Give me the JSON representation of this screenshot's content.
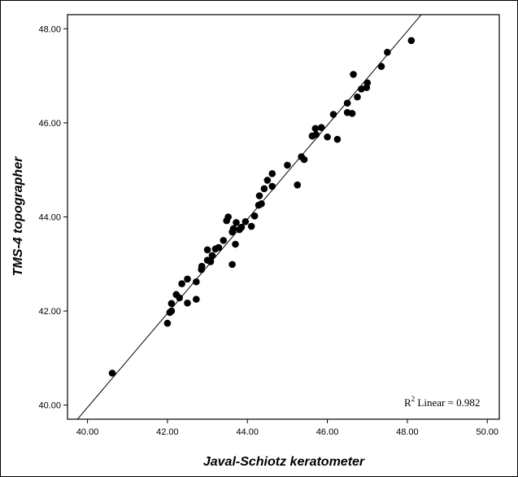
{
  "chart_data": {
    "type": "scatter",
    "xlabel": "Javal-Schiotz keratometer",
    "ylabel": "TMS-4 topographer",
    "xlim": [
      39.5,
      50.3
    ],
    "ylim": [
      39.7,
      48.3
    ],
    "xticks": [
      "40.00",
      "42.00",
      "44.00",
      "46.00",
      "48.00",
      "50.00"
    ],
    "yticks": [
      "40.00",
      "42.00",
      "44.00",
      "46.00",
      "48.00"
    ],
    "xtick_values": [
      40,
      42,
      44,
      46,
      48,
      50
    ],
    "ytick_values": [
      40,
      42,
      44,
      46,
      48
    ],
    "fit_line": {
      "slope": 1.0,
      "intercept": -0.05
    },
    "annotation": {
      "r2_base": "R",
      "r2_sup": "2",
      "r2_text": " Linear = 0.982"
    },
    "points": [
      [
        40.62,
        40.68
      ],
      [
        42.0,
        41.74
      ],
      [
        42.06,
        41.97
      ],
      [
        42.1,
        42.0
      ],
      [
        42.1,
        42.16
      ],
      [
        42.22,
        42.35
      ],
      [
        42.3,
        42.28
      ],
      [
        42.36,
        42.58
      ],
      [
        42.5,
        42.17
      ],
      [
        42.5,
        42.68
      ],
      [
        42.72,
        42.25
      ],
      [
        42.72,
        42.62
      ],
      [
        42.85,
        42.88
      ],
      [
        42.86,
        42.95
      ],
      [
        43.0,
        43.08
      ],
      [
        43.0,
        43.3
      ],
      [
        43.08,
        43.05
      ],
      [
        43.12,
        43.18
      ],
      [
        43.2,
        43.32
      ],
      [
        43.28,
        43.35
      ],
      [
        43.4,
        43.5
      ],
      [
        43.48,
        43.92
      ],
      [
        43.52,
        44.0
      ],
      [
        43.62,
        42.99
      ],
      [
        43.62,
        43.68
      ],
      [
        43.65,
        43.75
      ],
      [
        43.7,
        43.42
      ],
      [
        43.72,
        43.88
      ],
      [
        43.8,
        43.73
      ],
      [
        43.85,
        43.78
      ],
      [
        43.95,
        43.9
      ],
      [
        44.1,
        43.8
      ],
      [
        44.18,
        44.02
      ],
      [
        44.28,
        44.25
      ],
      [
        44.3,
        44.45
      ],
      [
        44.35,
        44.28
      ],
      [
        44.42,
        44.6
      ],
      [
        44.5,
        44.78
      ],
      [
        44.62,
        44.65
      ],
      [
        44.62,
        44.92
      ],
      [
        45.0,
        45.1
      ],
      [
        45.25,
        44.68
      ],
      [
        45.35,
        45.28
      ],
      [
        45.42,
        45.22
      ],
      [
        45.62,
        45.72
      ],
      [
        45.7,
        45.88
      ],
      [
        45.72,
        45.75
      ],
      [
        45.85,
        45.9
      ],
      [
        46.0,
        45.7
      ],
      [
        46.15,
        46.18
      ],
      [
        46.25,
        45.65
      ],
      [
        46.5,
        46.42
      ],
      [
        46.5,
        46.22
      ],
      [
        46.62,
        46.2
      ],
      [
        46.65,
        47.03
      ],
      [
        46.75,
        46.55
      ],
      [
        46.85,
        46.72
      ],
      [
        46.98,
        46.75
      ],
      [
        47.0,
        46.85
      ],
      [
        47.35,
        47.2
      ],
      [
        47.5,
        47.5
      ],
      [
        48.1,
        47.75
      ]
    ]
  }
}
